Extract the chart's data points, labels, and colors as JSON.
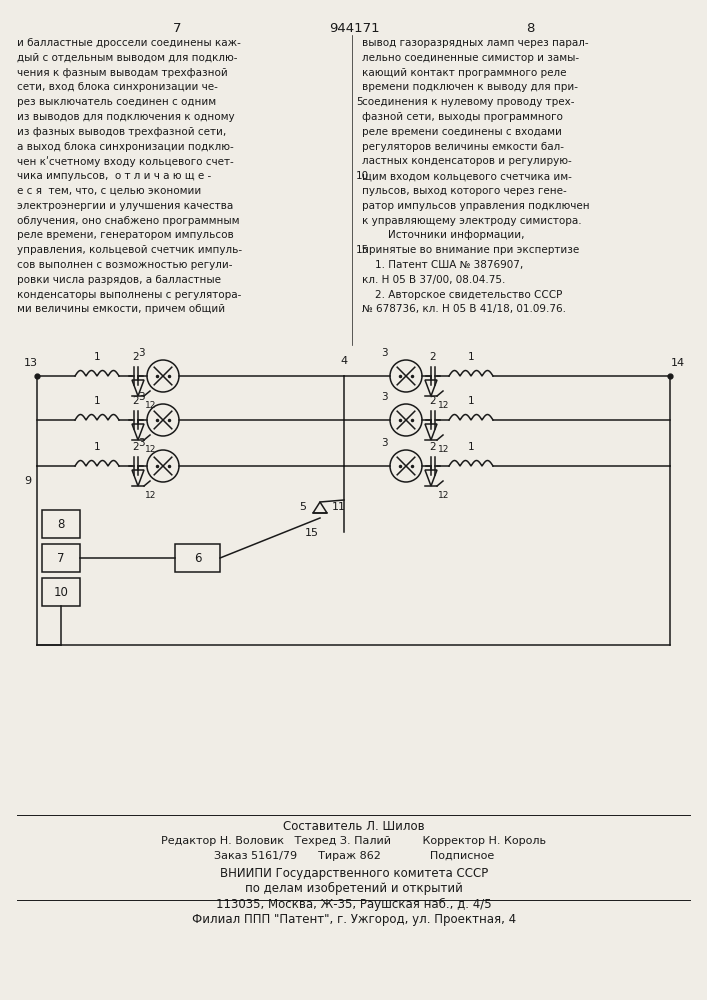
{
  "patent_number": "944171",
  "page_left": "7",
  "page_right": "8",
  "bg_color": "#f0ede6",
  "text_color": "#1a1a1a",
  "col1_text": [
    "и балластные дроссели соединены каж-",
    "дый с отдельным выводом для подклю-",
    "чения к фазным выводам трехфазной",
    "сети, вход блока синхронизации че-",
    "рез выключатель соединен с одним",
    "из выводов для подключения к одному",
    "из фазных выводов трехфазной сети,",
    "а выход блока синхронизации подклю-",
    "чен кʹсчетному входу кольцевого счет-",
    "чика импульсов,  о т л и ч а ю щ е -",
    "е с я  тем, что, с целью экономии",
    "электроэнергии и улучшения качества",
    "облучения, оно снабжено программным",
    "реле времени, генератором импульсов",
    "управления, кольцевой счетчик импуль-",
    "сов выполнен с возможностью регули-",
    "ровки числа разрядов, а балластные",
    "конденсаторы выполнены с регулятора-",
    "ми величины емкости, причем общий"
  ],
  "col2_text": [
    "вывод газоразрядных ламп через парал-",
    "лельно соединенные симистор и замы-",
    "кающий контакт программного реле",
    "времени подключен к выводу для при-",
    "соединения к нулевому проводу трех-",
    "фазной сети, выходы программного",
    "реле времени соединены с входами",
    "регуляторов величины емкости бал-",
    "ластных конденсаторов и регулирую-",
    "щим входом кольцевого счетчика им-",
    "пульсов, выход которого через гене-",
    "ратор импульсов управления подключен",
    "к управляющему электроду симистора.",
    "        Источники информации,",
    "принятые во внимание при экспертизе",
    "    1. Патент США № 3876907,",
    "кл. Н 05 В 37/00, 08.04.75.",
    "    2. Авторское свидетельство СССР",
    "№ 678736, кл. Н 05 В 41/18, 01.09.76."
  ],
  "footer_lines": [
    "Составитель Л. Шилов",
    "Редактор Н. Воловик   Техред З. Палий         Корректор Н. Король",
    "Заказ 5161/79      Тираж 862              Подписное",
    "ВНИИПИ Государственного комитета СССР",
    "по делам изобретений и открытий",
    "113035, Москва, Ж-35, Раушская наб., д. 4/5",
    "Филиал ППП \"Патент\", г. Ужгород, ул. Проектная, 4"
  ],
  "line_numbers": {
    "5": 4,
    "10": 9,
    "15": 14
  }
}
